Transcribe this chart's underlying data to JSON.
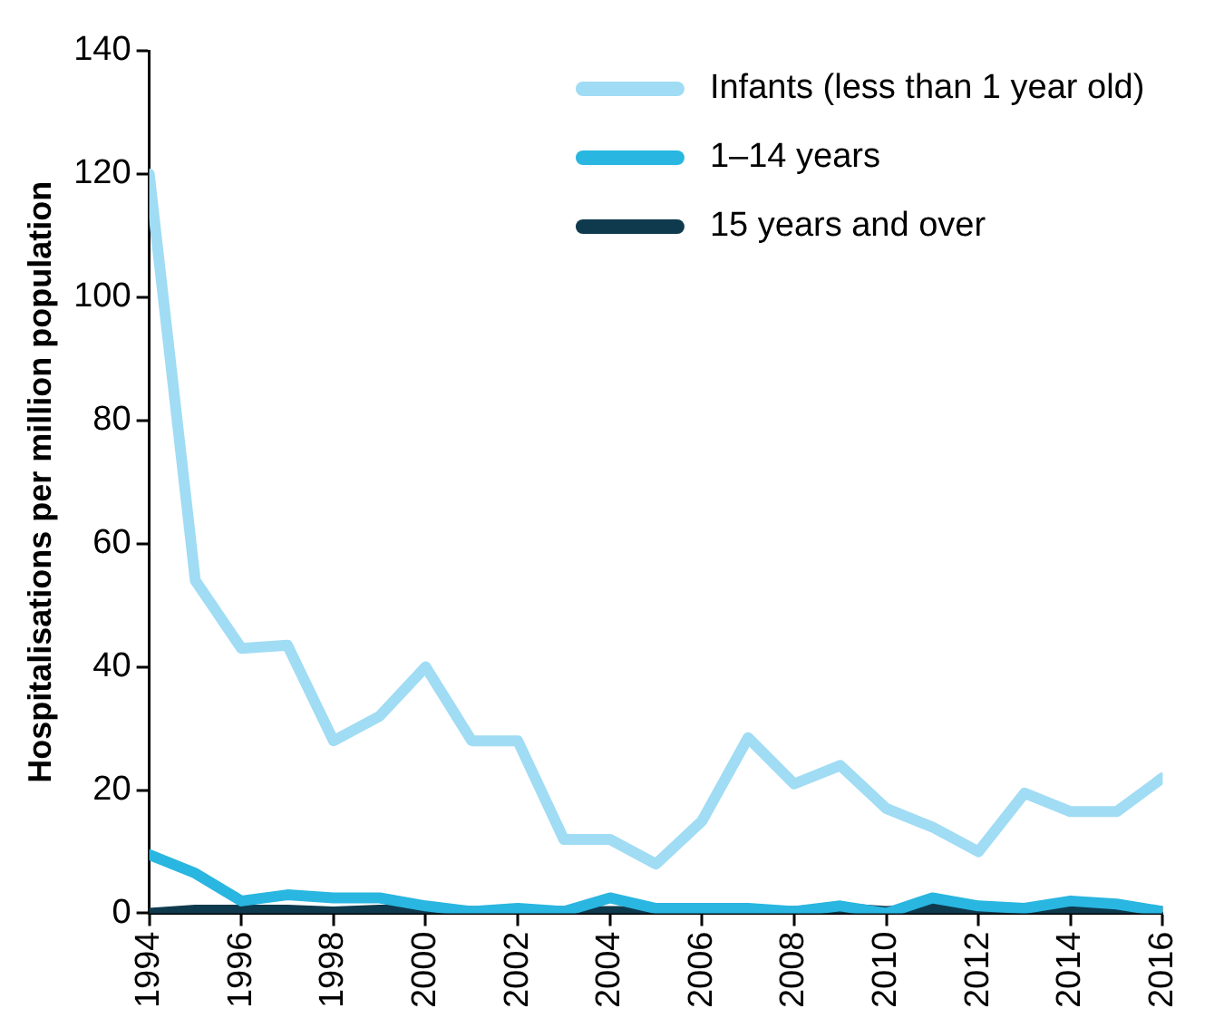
{
  "chart_data": {
    "type": "line",
    "ylabel": "Hospitalisations per million population",
    "x": [
      1994,
      1995,
      1996,
      1997,
      1998,
      1999,
      2000,
      2001,
      2002,
      2003,
      2004,
      2005,
      2006,
      2007,
      2008,
      2009,
      2010,
      2011,
      2012,
      2013,
      2014,
      2015,
      2016
    ],
    "series": [
      {
        "name": "Infants (less than 1 year old)",
        "color": "#a0dcf4",
        "values": [
          120,
          54,
          43,
          43.5,
          28,
          32,
          40,
          28,
          28,
          12,
          12,
          8,
          15,
          28.5,
          21,
          24,
          17,
          14,
          10,
          19.5,
          16.5,
          16.5,
          22
        ]
      },
      {
        "name": "1–14 years",
        "color": "#29b6e0",
        "values": [
          9.5,
          6.5,
          2,
          3,
          2.5,
          2.5,
          1.2,
          0.3,
          0.8,
          0.3,
          2.5,
          0.8,
          0.8,
          0.8,
          0.3,
          1.2,
          0,
          2.5,
          1.2,
          0.8,
          2,
          1.5,
          0.3
        ]
      },
      {
        "name": "15 years and over",
        "color": "#0f3a4e",
        "values": [
          0,
          0.5,
          0.5,
          0.5,
          0.2,
          0.5,
          0.5,
          0.3,
          0.3,
          0.3,
          0.3,
          0.3,
          0.3,
          0.3,
          0.3,
          0.8,
          0.3,
          0.8,
          0.3,
          0.8,
          0.3,
          0.3,
          0.3
        ]
      }
    ],
    "xlim": [
      1994,
      2016
    ],
    "xticks": [
      1994,
      1996,
      1998,
      2000,
      2002,
      2004,
      2006,
      2008,
      2010,
      2012,
      2014,
      2016
    ],
    "ylim": [
      0,
      140
    ],
    "yticks": [
      0,
      20,
      40,
      60,
      80,
      100,
      120,
      140
    ],
    "grid": false,
    "legend": "top right",
    "marker": "none",
    "line_style": "solid"
  }
}
